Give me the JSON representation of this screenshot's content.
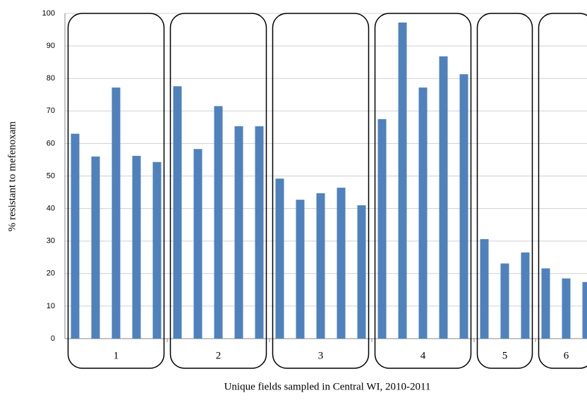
{
  "chart_data": {
    "type": "bar",
    "y_label": "% resistant to mefenoxam",
    "x_label": "Unique fields sampled in Central WI, 2010-2011",
    "color": "#4f81bd",
    "grid": true,
    "ylim": [
      0,
      100
    ],
    "yticks": [
      0,
      10,
      20,
      30,
      40,
      50,
      60,
      70,
      80,
      90,
      100
    ],
    "groups": [
      {
        "label": "1",
        "values": [
          63,
          56,
          77.2,
          56.2,
          54.3
        ]
      },
      {
        "label": "2",
        "values": [
          77.6,
          58.3,
          71.5,
          65.3,
          65.3
        ]
      },
      {
        "label": "3",
        "values": [
          49.2,
          42.7,
          44.7,
          46.4,
          41
        ]
      },
      {
        "label": "4",
        "values": [
          67.5,
          97.2,
          77.2,
          86.8,
          81.3
        ]
      },
      {
        "label": "5",
        "values": [
          30.6,
          23.1,
          26.5
        ]
      },
      {
        "label": "6",
        "values": [
          21.6,
          18.5,
          17.4
        ]
      }
    ]
  }
}
